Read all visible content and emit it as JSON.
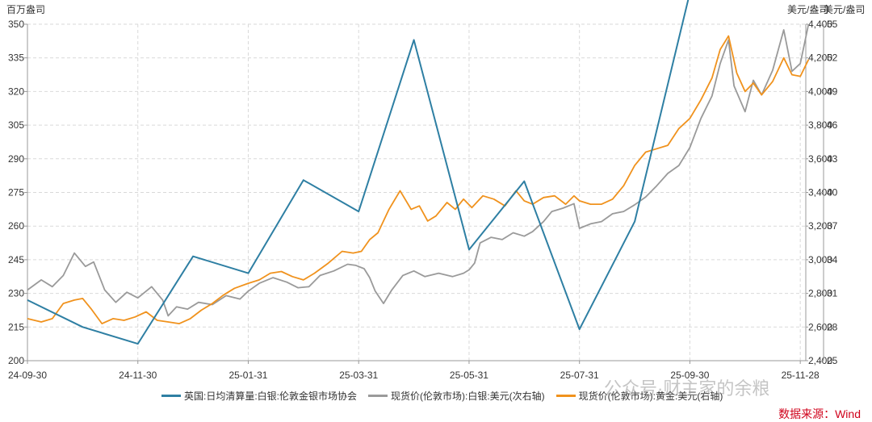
{
  "chart_data": {
    "type": "line",
    "unit_left": "百万盎司",
    "unit_right_a": "美元/盎司",
    "unit_right_b": "美元/盎司",
    "left_axis": {
      "ticks": [
        200,
        215,
        230,
        245,
        260,
        275,
        290,
        305,
        320,
        335,
        350
      ],
      "range": [
        200,
        350
      ]
    },
    "right_axis_b": {
      "ticks": [
        "2,400",
        "2,600",
        "2,800",
        "3,000",
        "3,200",
        "3,400",
        "3,600",
        "3,800",
        "4,000",
        "4,200",
        "4,400"
      ],
      "range": [
        2400,
        4400
      ]
    },
    "right_axis_a": {
      "ticks": [
        25,
        28,
        31,
        34,
        37,
        40,
        43,
        46,
        49,
        52,
        55
      ],
      "range": [
        25,
        55
      ]
    },
    "x_ticks": [
      "24-09-30",
      "24-11-30",
      "25-01-31",
      "25-03-31",
      "25-05-31",
      "25-07-31",
      "25-09-30",
      "25-11-28"
    ],
    "series": [
      {
        "name": "英国:日均清算量:白银:伦敦金银市场协会",
        "color": "#2e7fa3",
        "axis": "left",
        "points": [
          [
            0,
            227
          ],
          [
            1.0,
            215
          ],
          [
            2.0,
            207.5
          ],
          [
            3.0,
            246.5
          ],
          [
            4.0,
            239
          ],
          [
            5.0,
            280.5
          ],
          [
            6.0,
            266.5
          ],
          [
            7.0,
            343
          ],
          [
            8.0,
            249.5
          ],
          [
            9.0,
            280
          ],
          [
            10.0,
            214
          ],
          [
            11.0,
            262
          ],
          [
            12.0,
            364
          ]
        ]
      },
      {
        "name": "现货价(伦敦市场):白银:美元(次右轴)",
        "color": "#9a9a9a",
        "axis": "right_a",
        "points": [
          [
            0,
            31.3
          ],
          [
            0.25,
            32.2
          ],
          [
            0.45,
            31.6
          ],
          [
            0.65,
            32.6
          ],
          [
            0.85,
            34.6
          ],
          [
            1.05,
            33.4
          ],
          [
            1.2,
            33.8
          ],
          [
            1.4,
            31.3
          ],
          [
            1.6,
            30.2
          ],
          [
            1.8,
            31.1
          ],
          [
            2.0,
            30.6
          ],
          [
            2.25,
            31.6
          ],
          [
            2.45,
            30.4
          ],
          [
            2.55,
            29.0
          ],
          [
            2.7,
            29.8
          ],
          [
            2.9,
            29.6
          ],
          [
            3.1,
            30.2
          ],
          [
            3.35,
            30.0
          ],
          [
            3.6,
            30.8
          ],
          [
            3.85,
            30.5
          ],
          [
            4.0,
            31.2
          ],
          [
            4.2,
            31.9
          ],
          [
            4.45,
            32.4
          ],
          [
            4.7,
            32.0
          ],
          [
            4.9,
            31.5
          ],
          [
            5.1,
            31.6
          ],
          [
            5.3,
            32.6
          ],
          [
            5.55,
            33.0
          ],
          [
            5.8,
            33.6
          ],
          [
            5.95,
            33.5
          ],
          [
            6.1,
            33.2
          ],
          [
            6.2,
            32.4
          ],
          [
            6.3,
            31.2
          ],
          [
            6.45,
            30.1
          ],
          [
            6.6,
            31.3
          ],
          [
            6.8,
            32.6
          ],
          [
            7.0,
            33.0
          ],
          [
            7.2,
            32.5
          ],
          [
            7.45,
            32.8
          ],
          [
            7.7,
            32.5
          ],
          [
            7.9,
            32.8
          ],
          [
            8.0,
            33.1
          ],
          [
            8.1,
            33.7
          ],
          [
            8.2,
            35.5
          ],
          [
            8.4,
            36.0
          ],
          [
            8.6,
            35.8
          ],
          [
            8.8,
            36.4
          ],
          [
            9.0,
            36.1
          ],
          [
            9.15,
            36.5
          ],
          [
            9.35,
            37.4
          ],
          [
            9.5,
            38.3
          ],
          [
            9.7,
            38.6
          ],
          [
            9.9,
            39.0
          ],
          [
            10.0,
            36.8
          ],
          [
            10.2,
            37.2
          ],
          [
            10.4,
            37.4
          ],
          [
            10.6,
            38.1
          ],
          [
            10.8,
            38.3
          ],
          [
            11.0,
            38.9
          ],
          [
            11.2,
            39.6
          ],
          [
            11.4,
            40.6
          ],
          [
            11.6,
            41.7
          ],
          [
            11.8,
            42.4
          ],
          [
            12.0,
            44.0
          ],
          [
            12.2,
            46.6
          ],
          [
            12.4,
            48.6
          ],
          [
            12.55,
            51.5
          ],
          [
            12.7,
            53.6
          ],
          [
            12.8,
            49.5
          ],
          [
            13.0,
            47.2
          ],
          [
            13.15,
            50.0
          ],
          [
            13.3,
            48.7
          ],
          [
            13.5,
            50.9
          ],
          [
            13.7,
            54.5
          ],
          [
            13.85,
            50.8
          ],
          [
            14.0,
            51.5
          ],
          [
            14.15,
            55.0
          ]
        ]
      },
      {
        "name": "现货价(伦敦市场):黄金:美元(右轴)",
        "color": "#f0921d",
        "axis": "right_b",
        "points": [
          [
            0,
            2650
          ],
          [
            0.25,
            2630
          ],
          [
            0.45,
            2650
          ],
          [
            0.65,
            2740
          ],
          [
            0.85,
            2760
          ],
          [
            1.0,
            2770
          ],
          [
            1.15,
            2710
          ],
          [
            1.35,
            2620
          ],
          [
            1.55,
            2650
          ],
          [
            1.75,
            2640
          ],
          [
            1.95,
            2660
          ],
          [
            2.15,
            2690
          ],
          [
            2.35,
            2640
          ],
          [
            2.55,
            2630
          ],
          [
            2.75,
            2620
          ],
          [
            2.95,
            2650
          ],
          [
            3.15,
            2700
          ],
          [
            3.35,
            2740
          ],
          [
            3.55,
            2790
          ],
          [
            3.75,
            2830
          ],
          [
            4.0,
            2860
          ],
          [
            4.2,
            2880
          ],
          [
            4.4,
            2920
          ],
          [
            4.6,
            2930
          ],
          [
            4.8,
            2900
          ],
          [
            5.0,
            2880
          ],
          [
            5.2,
            2920
          ],
          [
            5.45,
            2980
          ],
          [
            5.7,
            3050
          ],
          [
            5.9,
            3040
          ],
          [
            6.05,
            3050
          ],
          [
            6.2,
            3120
          ],
          [
            6.35,
            3160
          ],
          [
            6.55,
            3300
          ],
          [
            6.75,
            3410
          ],
          [
            6.95,
            3300
          ],
          [
            7.1,
            3320
          ],
          [
            7.25,
            3230
          ],
          [
            7.4,
            3260
          ],
          [
            7.6,
            3340
          ],
          [
            7.75,
            3300
          ],
          [
            7.9,
            3360
          ],
          [
            8.05,
            3310
          ],
          [
            8.25,
            3380
          ],
          [
            8.45,
            3360
          ],
          [
            8.65,
            3320
          ],
          [
            8.85,
            3410
          ],
          [
            9.0,
            3350
          ],
          [
            9.15,
            3330
          ],
          [
            9.35,
            3370
          ],
          [
            9.55,
            3380
          ],
          [
            9.75,
            3330
          ],
          [
            9.9,
            3380
          ],
          [
            10.0,
            3350
          ],
          [
            10.2,
            3330
          ],
          [
            10.4,
            3330
          ],
          [
            10.6,
            3360
          ],
          [
            10.8,
            3440
          ],
          [
            11.0,
            3560
          ],
          [
            11.2,
            3640
          ],
          [
            11.4,
            3660
          ],
          [
            11.6,
            3680
          ],
          [
            11.8,
            3780
          ],
          [
            12.0,
            3840
          ],
          [
            12.2,
            3950
          ],
          [
            12.4,
            4080
          ],
          [
            12.55,
            4250
          ],
          [
            12.7,
            4330
          ],
          [
            12.85,
            4110
          ],
          [
            13.0,
            4000
          ],
          [
            13.15,
            4050
          ],
          [
            13.3,
            3980
          ],
          [
            13.5,
            4060
          ],
          [
            13.7,
            4200
          ],
          [
            13.85,
            4100
          ],
          [
            14.0,
            4090
          ],
          [
            14.15,
            4190
          ]
        ]
      }
    ],
    "source": "数据来源：Wind"
  },
  "watermark": "公众号·财主家的余粮"
}
